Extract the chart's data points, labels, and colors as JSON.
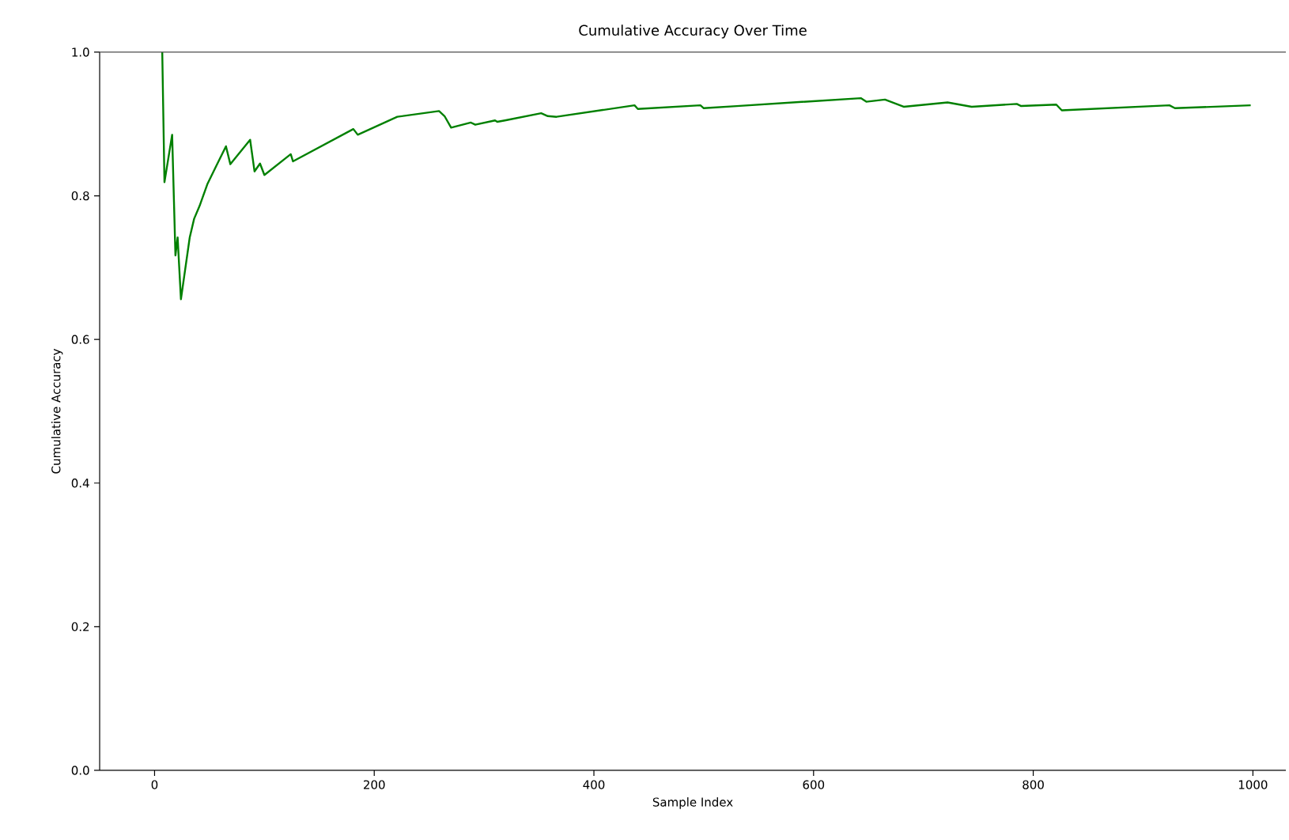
{
  "chart_data": {
    "type": "line",
    "title": "Cumulative Accuracy Over Time",
    "xlabel": "Sample Index",
    "ylabel": "Cumulative Accuracy",
    "xlim": [
      -50,
      1030
    ],
    "ylim": [
      0,
      1.0
    ],
    "xticks": [
      0,
      200,
      400,
      600,
      800,
      1000
    ],
    "yticks": [
      {
        "value": 0,
        "label": "0.0"
      },
      {
        "value": 0.2,
        "label": "0.2"
      },
      {
        "value": 0.4,
        "label": "0.4"
      },
      {
        "value": 0.6,
        "label": "0.6"
      },
      {
        "value": 0.8,
        "label": "0.8"
      },
      {
        "value": 1.0,
        "label": "1.0"
      }
    ],
    "marker": "none",
    "line_style": "solid",
    "series": [
      {
        "color": "#008000",
        "x": [
          7,
          9,
          16,
          19,
          21,
          24,
          32,
          36,
          41,
          48,
          56,
          65,
          69,
          87,
          91,
          96,
          100,
          124,
          126,
          181,
          185,
          221,
          259,
          264,
          270,
          288,
          292,
          310,
          312,
          319,
          352,
          358,
          366,
          437,
          440,
          497,
          500,
          530,
          643,
          648,
          665,
          682,
          722,
          744,
          785,
          789,
          821,
          826,
          924,
          929,
          998
        ],
        "values": [
          1.0,
          0.819,
          0.885,
          0.717,
          0.742,
          0.656,
          0.742,
          0.768,
          0.786,
          0.816,
          0.841,
          0.869,
          0.844,
          0.878,
          0.834,
          0.845,
          0.829,
          0.858,
          0.848,
          0.893,
          0.885,
          0.91,
          0.918,
          0.911,
          0.895,
          0.902,
          0.899,
          0.905,
          0.903,
          0.905,
          0.915,
          0.911,
          0.91,
          0.926,
          0.921,
          0.926,
          0.922,
          0.925,
          0.936,
          0.931,
          0.934,
          0.924,
          0.93,
          0.924,
          0.928,
          0.925,
          0.927,
          0.919,
          0.926,
          0.922,
          0.926
        ]
      }
    ]
  }
}
